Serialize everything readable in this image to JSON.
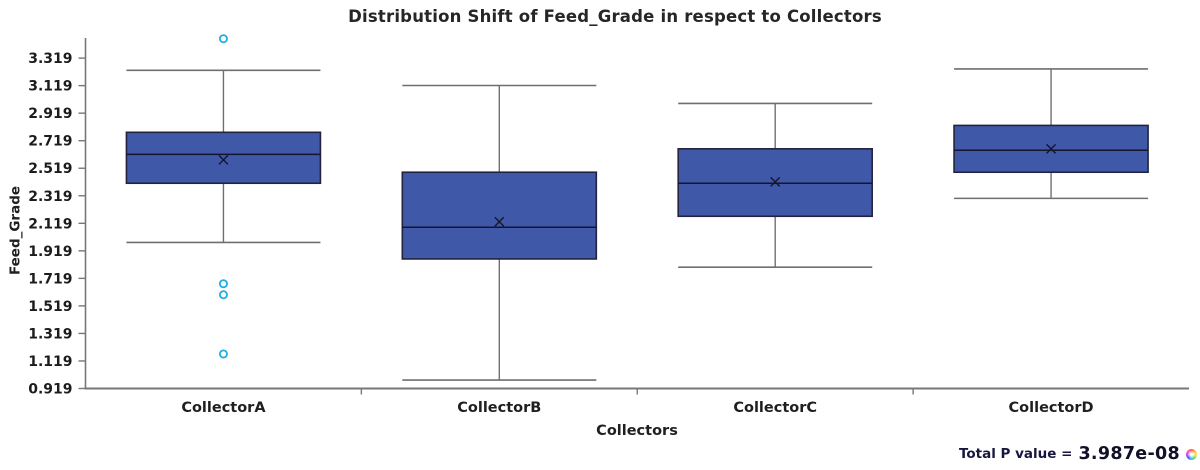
{
  "chart_data": {
    "type": "boxplot",
    "title": "Distribution Shift of Feed_Grade in respect to Collectors",
    "xlabel": "Collectors",
    "ylabel": "Feed_Grade",
    "categories": [
      "CollectorA",
      "CollectorB",
      "CollectorC",
      "CollectorD"
    ],
    "ylim": [
      0.919,
      3.465
    ],
    "yticks": [
      0.919,
      1.119,
      1.319,
      1.519,
      1.719,
      1.919,
      2.119,
      2.319,
      2.519,
      2.719,
      2.919,
      3.119,
      3.319
    ],
    "grid": false,
    "legend": false,
    "series": [
      {
        "name": "CollectorA",
        "whisker_low": 1.98,
        "q1": 2.41,
        "median": 2.62,
        "mean": 2.58,
        "q3": 2.78,
        "whisker_high": 3.23,
        "outliers": [
          3.46,
          1.68,
          1.6,
          1.17
        ]
      },
      {
        "name": "CollectorB",
        "whisker_low": 0.98,
        "q1": 1.86,
        "median": 2.09,
        "mean": 2.13,
        "q3": 2.49,
        "whisker_high": 3.12,
        "outliers": []
      },
      {
        "name": "CollectorC",
        "whisker_low": 1.8,
        "q1": 2.17,
        "median": 2.41,
        "mean": 2.42,
        "q3": 2.66,
        "whisker_high": 2.99,
        "outliers": []
      },
      {
        "name": "CollectorD",
        "whisker_low": 2.3,
        "q1": 2.49,
        "median": 2.65,
        "mean": 2.66,
        "q3": 2.83,
        "whisker_high": 3.24,
        "outliers": []
      }
    ],
    "colors": {
      "box_fill": "#3F58A8",
      "box_border": "#23233F",
      "median_line": "#15152E",
      "mean_marker": "#15152E",
      "whisker": "#6F6F6F",
      "axis": "#777777",
      "outlier": "#1FADE4",
      "tick_text": "#1C1C1C",
      "category_text": "#1F1F1F"
    }
  },
  "footer": {
    "p_label": "Total P value =",
    "p_value": "3.987e-08"
  }
}
